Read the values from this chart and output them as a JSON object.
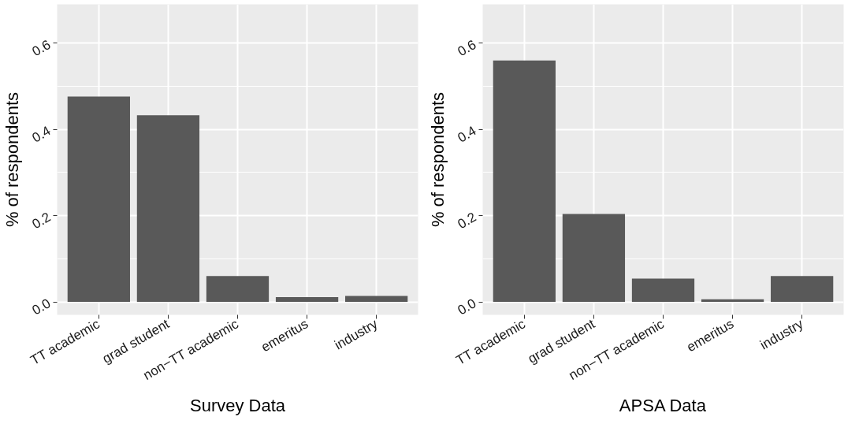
{
  "chart_data": [
    {
      "type": "bar",
      "categories": [
        "TT academic",
        "grad student",
        "non−TT academic",
        "emeritus",
        "industry"
      ],
      "values": [
        0.476,
        0.433,
        0.06,
        0.011,
        0.014
      ],
      "color": "#595959",
      "xlabel": "Survey Data",
      "ylabel": "% of respondents",
      "ylim": [
        -0.03,
        0.69
      ],
      "yticks": [
        {
          "value": 0,
          "label": "0.0"
        },
        {
          "value": 0.2,
          "label": "0.2"
        },
        {
          "value": 0.4,
          "label": "0.4"
        },
        {
          "value": 0.6,
          "label": "0.6"
        }
      ],
      "grid": true
    },
    {
      "type": "bar",
      "categories": [
        "TT academic",
        "grad student",
        "non−TT academic",
        "emeritus",
        "industry"
      ],
      "values": [
        0.56,
        0.204,
        0.054,
        0.006,
        0.06
      ],
      "color": "#595959",
      "xlabel": "APSA Data",
      "ylabel": "% of respondents",
      "ylim": [
        -0.03,
        0.69
      ],
      "yticks": [
        {
          "value": 0,
          "label": "0.0"
        },
        {
          "value": 0.2,
          "label": "0.2"
        },
        {
          "value": 0.4,
          "label": "0.4"
        },
        {
          "value": 0.6,
          "label": "0.6"
        }
      ],
      "grid": true
    }
  ]
}
